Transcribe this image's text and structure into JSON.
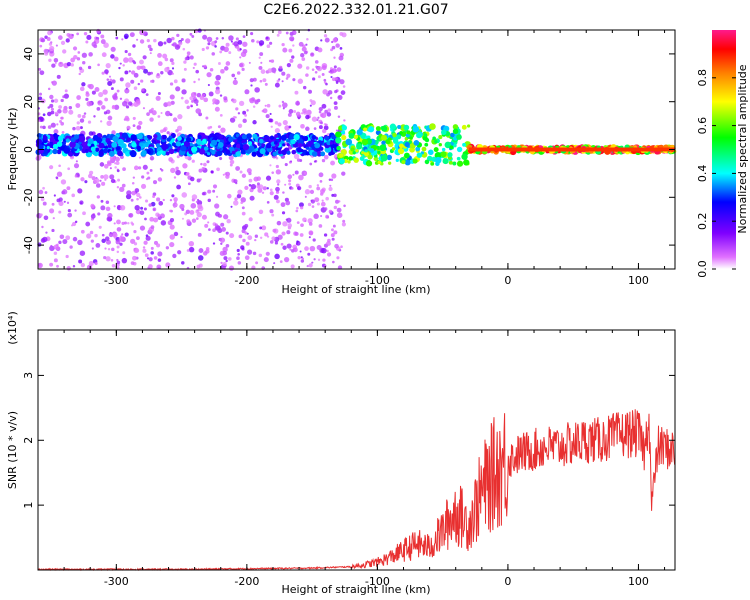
{
  "figure": {
    "title": "C2E6.2022.332.01.21.G07"
  },
  "chart_data": [
    {
      "type": "heatmap",
      "xlabel": "Height of straight line (km)",
      "ylabel": "Frequency (Hz)",
      "xlim": [
        -360,
        128
      ],
      "ylim": [
        -50,
        50
      ],
      "xticks": [
        -300,
        -200,
        -100,
        0,
        100
      ],
      "yticks": [
        -40,
        -20,
        0,
        20,
        40
      ],
      "grid": false,
      "colorbar": {
        "label": "Normalized spectral amplitude",
        "range": [
          0,
          1
        ],
        "ticks": [
          0.0,
          0.2,
          0.4,
          0.6,
          0.8
        ],
        "colormap": "rainbow"
      },
      "features": [
        {
          "x": [
            -360,
            -130
          ],
          "center_freq": 2,
          "spread": 4,
          "level": 0.35
        },
        {
          "x": [
            -130,
            -30
          ],
          "center_freq": 2,
          "spread": 8,
          "level": 0.6
        },
        {
          "x": [
            -30,
            128
          ],
          "center_freq": 0,
          "spread": 1,
          "level": 0.9
        }
      ]
    },
    {
      "type": "line",
      "xlabel": "Height of straight line (km)",
      "ylabel": "SNR (10 * v/v)",
      "y_multiplier": "(x10⁴)",
      "xlim": [
        -360,
        128
      ],
      "ylim": [
        0,
        3.7
      ],
      "xticks": [
        -300,
        -200,
        -100,
        0,
        100
      ],
      "yticks": [
        1,
        2,
        3
      ],
      "grid": false,
      "series": [
        {
          "color": "#e83030",
          "x": [
            -360,
            -300,
            -250,
            -200,
            -150,
            -120,
            -110,
            -100,
            -90,
            -80,
            -70,
            -60,
            -50,
            -40,
            -30,
            -20,
            -10,
            0,
            10,
            20,
            30,
            40,
            50,
            60,
            70,
            80,
            90,
            100,
            105,
            108,
            110,
            115,
            128
          ],
          "y": [
            0.01,
            0.01,
            0.01,
            0.02,
            0.03,
            0.05,
            0.08,
            0.12,
            0.2,
            0.3,
            0.4,
            0.35,
            0.6,
            0.9,
            0.7,
            1.2,
            1.5,
            1.7,
            1.8,
            1.85,
            1.9,
            1.9,
            1.95,
            2.0,
            2.0,
            2.05,
            2.1,
            2.1,
            1.8,
            2.5,
            1.0,
            1.9,
            1.85
          ]
        }
      ]
    }
  ]
}
